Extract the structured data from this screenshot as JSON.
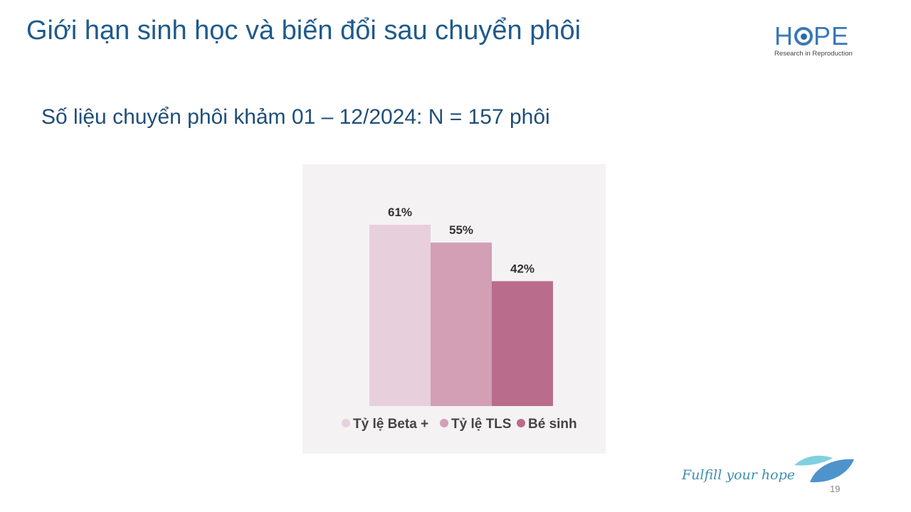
{
  "slide": {
    "title": "Giới hạn sinh học và biến đổi sau chuyển phôi",
    "subtitle": "Số liệu chuyển phôi khảm 01 – 12/2024: N = 157 phôi",
    "logo": {
      "word_left": "H",
      "word_right": "PE",
      "tagline": "Research in Reproduction"
    },
    "footer_tagline": "Fulfill your hope",
    "page_number": "19"
  },
  "chart_data": {
    "type": "bar",
    "categories": [
      "Tỷ lệ Beta +",
      "Tỷ lệ TLS",
      "Bé sinh"
    ],
    "values": [
      61,
      55,
      42
    ],
    "data_labels": [
      "61%",
      "55%",
      "42%"
    ],
    "colors": [
      "#e8cfdc",
      "#d29fb5",
      "#b96c8c"
    ],
    "legend": "bottom",
    "grid": false,
    "ylim": [
      0,
      100
    ],
    "background": "#f4f2f3"
  }
}
